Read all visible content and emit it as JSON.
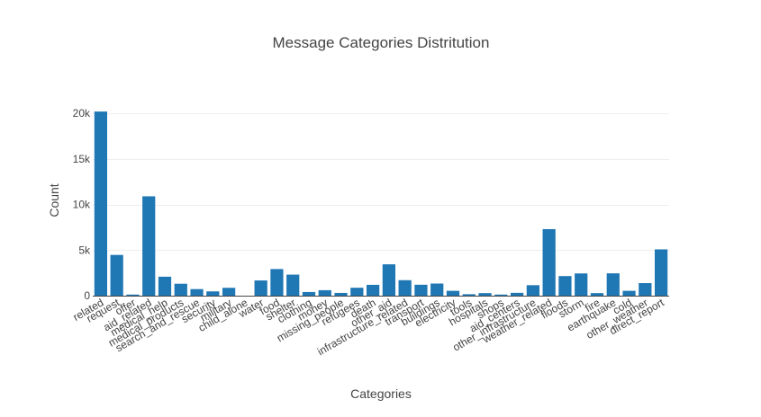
{
  "chart_data": {
    "type": "bar",
    "title": "Message Categories Distritution",
    "xlabel": "Categories",
    "ylabel": "Count",
    "ylim": [
      0,
      21000
    ],
    "yticks": [
      0,
      5000,
      10000,
      15000,
      20000
    ],
    "ytick_labels": [
      "0",
      "5k",
      "10k",
      "15k",
      "20k"
    ],
    "grid": true,
    "bar_color": "#1f77b4",
    "categories": [
      "related",
      "request",
      "offer",
      "aid_related",
      "medical_help",
      "medical_products",
      "search_and_rescue",
      "security",
      "military",
      "child_alone",
      "water",
      "food",
      "shelter",
      "clothing",
      "money",
      "missing_people",
      "refugees",
      "death",
      "other_aid",
      "infrastructure_related",
      "transport",
      "buildings",
      "electricity",
      "tools",
      "hospitals",
      "shops",
      "aid_centers",
      "other_infrastructure",
      "weather_related",
      "floods",
      "storm",
      "fire",
      "earthquake",
      "cold",
      "other_weather",
      "direct_report"
    ],
    "values": [
      20200,
      4470,
      120,
      10900,
      2080,
      1310,
      720,
      470,
      860,
      0,
      1670,
      2920,
      2310,
      400,
      600,
      300,
      870,
      1190,
      3440,
      1700,
      1200,
      1330,
      530,
      160,
      280,
      120,
      310,
      1150,
      7300,
      2150,
      2440,
      280,
      2450,
      530,
      1380,
      5080
    ]
  }
}
